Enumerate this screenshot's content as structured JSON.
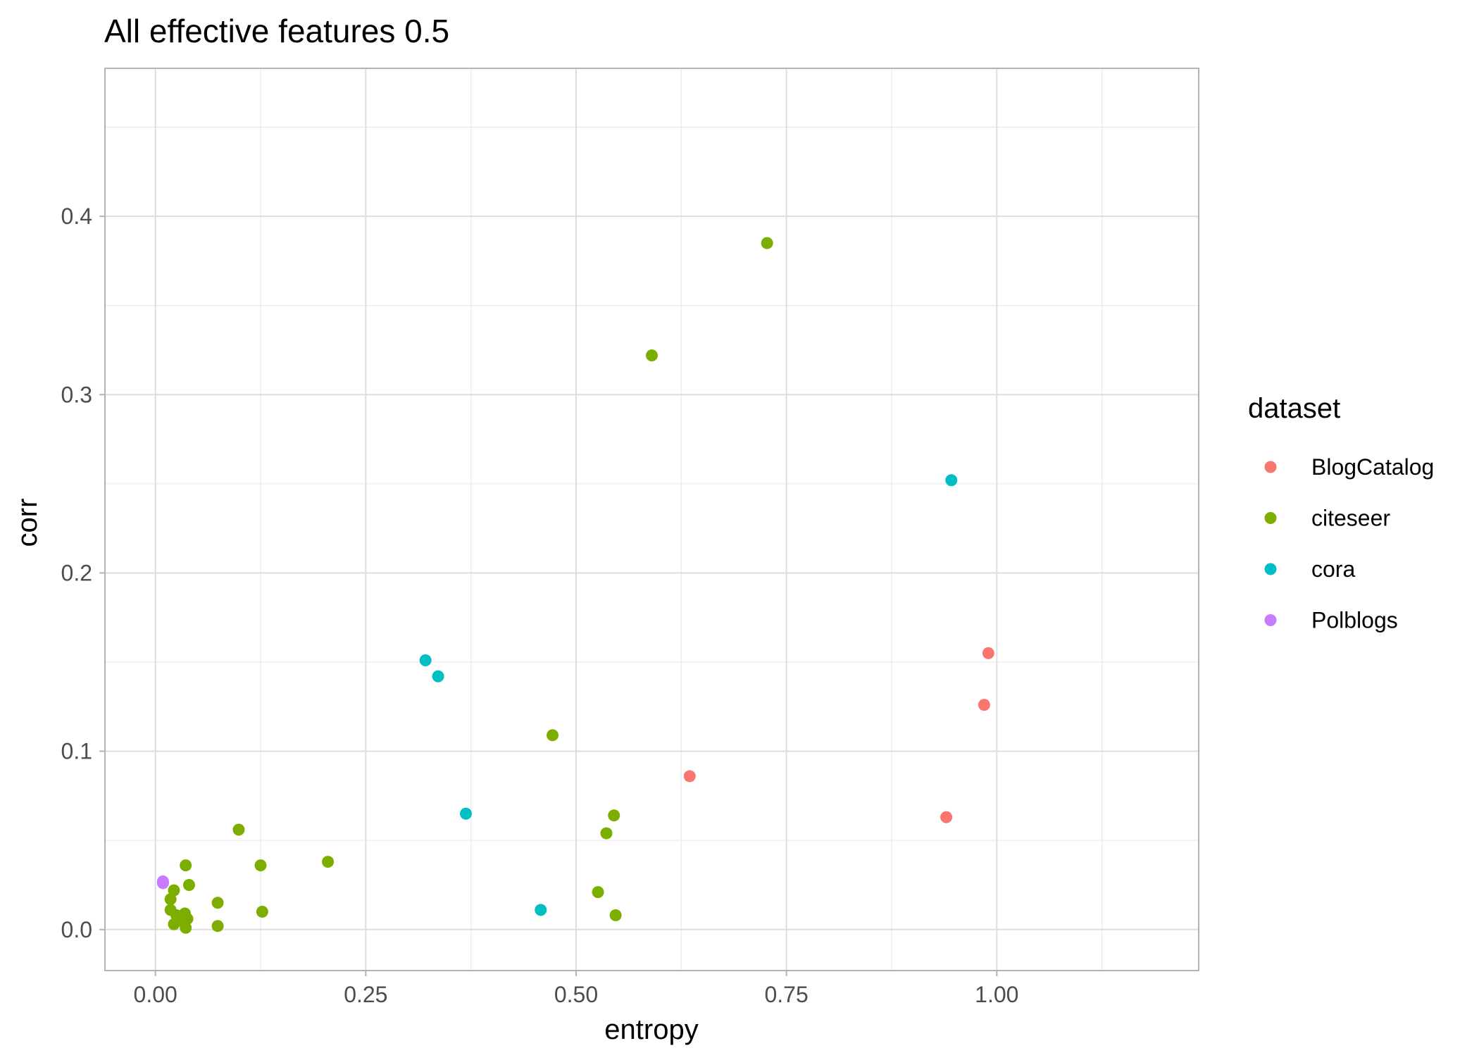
{
  "chart_data": {
    "type": "scatter",
    "title": "All effective features 0.5",
    "xlabel": "entropy",
    "ylabel": "corr",
    "xlim": [
      -0.06,
      1.24
    ],
    "ylim": [
      -0.023,
      0.483
    ],
    "x_ticks": [
      0.0,
      0.25,
      0.5,
      0.75,
      1.0
    ],
    "x_tick_labels": [
      "0.00",
      "0.25",
      "0.50",
      "0.75",
      "1.00"
    ],
    "y_ticks": [
      0.0,
      0.1,
      0.2,
      0.3,
      0.4
    ],
    "y_tick_labels": [
      "0.0",
      "0.1",
      "0.2",
      "0.3",
      "0.4"
    ],
    "grid": true,
    "legend_title": "dataset",
    "legend_position": "right",
    "series": [
      {
        "name": "BlogCatalog",
        "color": "#F8766D",
        "points": [
          {
            "x": 0.99,
            "y": 0.155
          },
          {
            "x": 0.985,
            "y": 0.126
          },
          {
            "x": 0.635,
            "y": 0.086
          },
          {
            "x": 0.94,
            "y": 0.063
          }
        ]
      },
      {
        "name": "citeseer",
        "color": "#7CAE00",
        "points": [
          {
            "x": 0.727,
            "y": 0.385
          },
          {
            "x": 0.59,
            "y": 0.322
          },
          {
            "x": 0.472,
            "y": 0.109
          },
          {
            "x": 0.545,
            "y": 0.064
          },
          {
            "x": 0.536,
            "y": 0.054
          },
          {
            "x": 0.526,
            "y": 0.021
          },
          {
            "x": 0.547,
            "y": 0.008
          },
          {
            "x": 0.099,
            "y": 0.056
          },
          {
            "x": 0.205,
            "y": 0.038
          },
          {
            "x": 0.125,
            "y": 0.036
          },
          {
            "x": 0.036,
            "y": 0.036
          },
          {
            "x": 0.04,
            "y": 0.025
          },
          {
            "x": 0.022,
            "y": 0.022
          },
          {
            "x": 0.018,
            "y": 0.017
          },
          {
            "x": 0.074,
            "y": 0.015
          },
          {
            "x": 0.018,
            "y": 0.011
          },
          {
            "x": 0.127,
            "y": 0.01
          },
          {
            "x": 0.035,
            "y": 0.009
          },
          {
            "x": 0.025,
            "y": 0.008
          },
          {
            "x": 0.038,
            "y": 0.006
          },
          {
            "x": 0.03,
            "y": 0.005
          },
          {
            "x": 0.022,
            "y": 0.003
          },
          {
            "x": 0.074,
            "y": 0.002
          },
          {
            "x": 0.036,
            "y": 0.001
          }
        ]
      },
      {
        "name": "cora",
        "color": "#00BFC4",
        "points": [
          {
            "x": 0.946,
            "y": 0.252
          },
          {
            "x": 0.321,
            "y": 0.151
          },
          {
            "x": 0.336,
            "y": 0.142
          },
          {
            "x": 0.369,
            "y": 0.065
          },
          {
            "x": 0.458,
            "y": 0.011
          }
        ]
      },
      {
        "name": "Polblogs",
        "color": "#C77CFF",
        "points": [
          {
            "x": 0.009,
            "y": 0.027
          },
          {
            "x": 0.009,
            "y": 0.026
          }
        ]
      }
    ]
  }
}
